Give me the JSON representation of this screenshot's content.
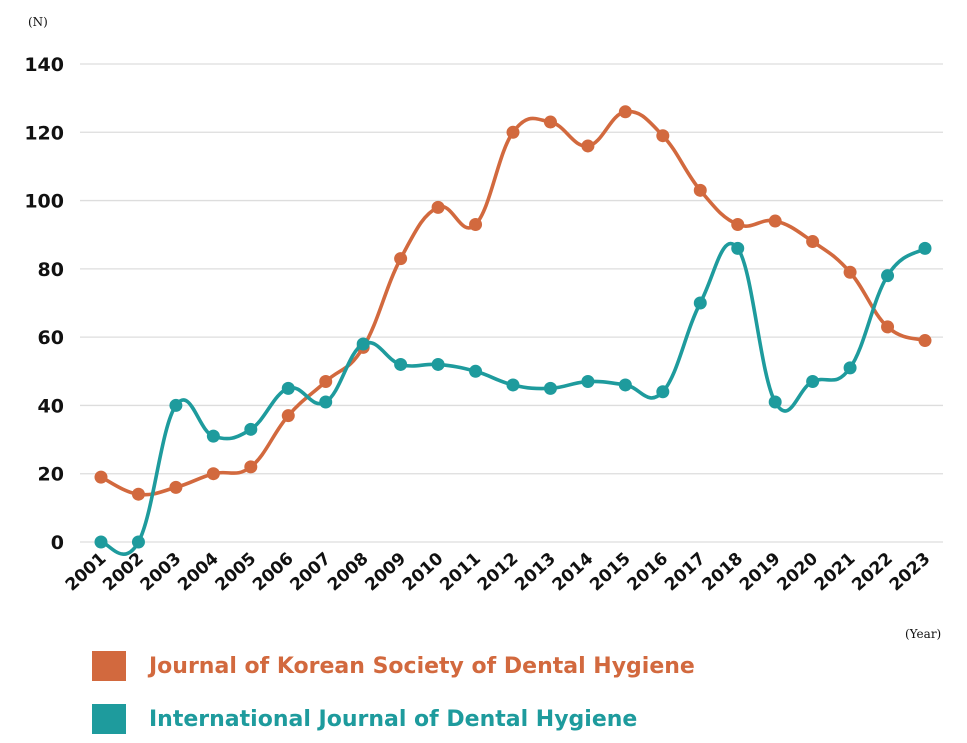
{
  "chart_data": {
    "type": "line",
    "y_unit_label": "(N)",
    "x_unit_label": "(Year)",
    "ylim": [
      0,
      140
    ],
    "yticks": [
      0,
      20,
      40,
      60,
      80,
      100,
      120,
      140
    ],
    "grid": true,
    "legend_position": "bottom-left",
    "categories": [
      "2001",
      "2002",
      "2003",
      "2004",
      "2005",
      "2006",
      "2007",
      "2008",
      "2009",
      "2010",
      "2011",
      "2012",
      "2013",
      "2014",
      "2015",
      "2016",
      "2017",
      "2018",
      "2019",
      "2020",
      "2021",
      "2022",
      "2023"
    ],
    "series": [
      {
        "name": "Journal of Korean Society of Dental Hygiene",
        "color": "#d2693e",
        "values": [
          19,
          14,
          16,
          20,
          22,
          37,
          47,
          57,
          83,
          98,
          93,
          120,
          123,
          116,
          126,
          119,
          103,
          93,
          94,
          88,
          79,
          63,
          59
        ]
      },
      {
        "name": "International Journal of Dental Hygiene",
        "color": "#1e9b9d",
        "values": [
          0,
          0,
          40,
          31,
          33,
          45,
          41,
          58,
          52,
          52,
          50,
          46,
          45,
          47,
          46,
          44,
          70,
          86,
          41,
          47,
          51,
          78,
          86
        ]
      }
    ]
  }
}
